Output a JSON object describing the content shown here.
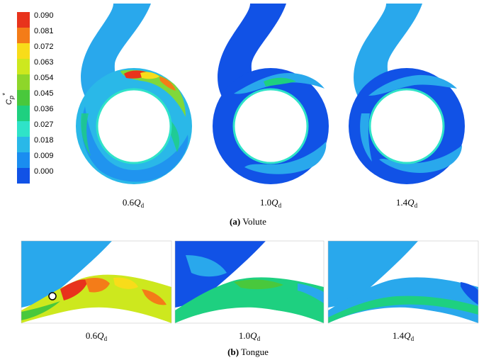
{
  "colorbar": {
    "label_main": "C",
    "label_sub": "p",
    "label_sup": "*",
    "ticks": [
      "0.090",
      "0.081",
      "0.072",
      "0.063",
      "0.054",
      "0.045",
      "0.036",
      "0.027",
      "0.018",
      "0.009",
      "0.000"
    ],
    "colors": [
      "#e8331c",
      "#f47c18",
      "#f8dc1a",
      "#cde81e",
      "#8ed62a",
      "#49c83c",
      "#1ed080",
      "#2fe3c8",
      "#29b8e8",
      "#1a8df0",
      "#1152e6"
    ]
  },
  "volute": {
    "cases": [
      {
        "coef": "0.6",
        "q": "Q",
        "sub": "d"
      },
      {
        "coef": "1.0",
        "q": "Q",
        "sub": "d"
      },
      {
        "coef": "1.4",
        "q": "Q",
        "sub": "d"
      }
    ],
    "caption_tag": "(a)",
    "caption_text": " Volute"
  },
  "tongue": {
    "cases": [
      {
        "coef": "0.6",
        "q": "Q",
        "sub": "d"
      },
      {
        "coef": "1.0",
        "q": "Q",
        "sub": "d"
      },
      {
        "coef": "1.4",
        "q": "Q",
        "sub": "d"
      }
    ],
    "caption_tag": "(b)",
    "caption_text": " Tongue"
  }
}
